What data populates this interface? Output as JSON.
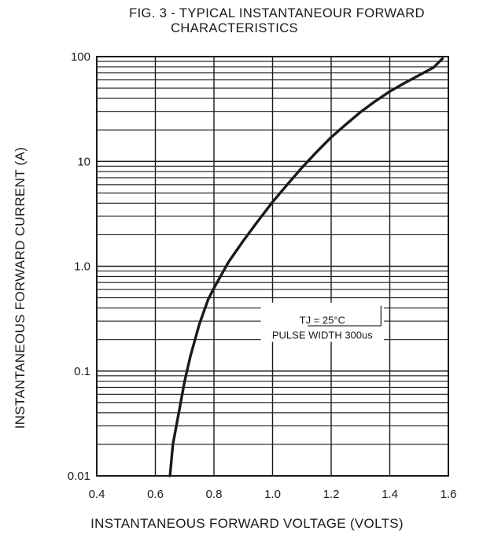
{
  "chart_data": {
    "type": "line",
    "title": "FIG. 3 - TYPICAL INSTANTANEOUR FORWARD",
    "subtitle": "CHARACTERISTICS",
    "xlabel": "INSTANTANEOUS FORWARD VOLTAGE (VOLTS)",
    "ylabel": "INSTANTANEOUS FORWARD CURRENT (A)",
    "xlim": [
      0.4,
      1.6
    ],
    "ylim": [
      0.01,
      100
    ],
    "yscale": "log",
    "grid": true,
    "x_ticks": [
      "0.4",
      "0.6",
      "0.8",
      "1.0",
      "1.2",
      "1.4",
      "1.6"
    ],
    "y_ticks": [
      "0.01",
      "0.1",
      "1.0",
      "10",
      "100"
    ],
    "series": [
      {
        "x": [
          0.65,
          0.66,
          0.68,
          0.7,
          0.72,
          0.75,
          0.78,
          0.8,
          0.85,
          0.9,
          0.95,
          1.0,
          1.05,
          1.1,
          1.15,
          1.2,
          1.25,
          1.3,
          1.35,
          1.4,
          1.45,
          1.5,
          1.55,
          1.58
        ],
        "y": [
          0.01,
          0.02,
          0.04,
          0.08,
          0.14,
          0.28,
          0.48,
          0.62,
          1.1,
          1.75,
          2.7,
          4.1,
          6.0,
          8.7,
          12.3,
          17.0,
          22.5,
          29.5,
          37.5,
          46.5,
          56.0,
          66.5,
          79.0,
          96.0
        ]
      }
    ],
    "annotations": [
      "TJ = 25°C",
      "PULSE WIDTH 300us"
    ]
  }
}
